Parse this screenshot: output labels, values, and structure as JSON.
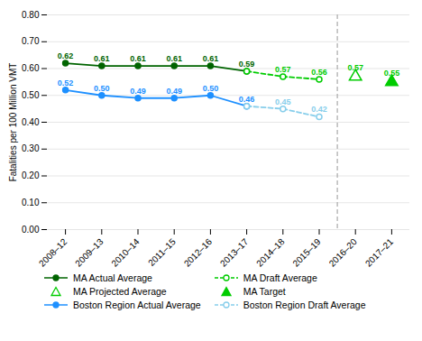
{
  "chart_data": {
    "type": "line",
    "categories": [
      "2008–12",
      "2009–13",
      "2010–14",
      "2011–15",
      "2012–16",
      "2013–17",
      "2014–18",
      "2015–19",
      "2016–20",
      "2017–21"
    ],
    "series": [
      {
        "name": "MA Actual Average",
        "type": "line",
        "color": "#006400",
        "marker": "circle",
        "line_style": "solid",
        "values": [
          0.62,
          0.61,
          0.61,
          0.61,
          0.61,
          0.59,
          null,
          null,
          null,
          null
        ],
        "value_labels": [
          "0.62",
          "0.61",
          "0.61",
          "0.61",
          "0.61",
          "0.59",
          null,
          null,
          null,
          null
        ]
      },
      {
        "name": "MA Draft Average",
        "type": "line",
        "color": "#00cc00",
        "marker": "open_circle",
        "line_style": "dashed",
        "values": [
          null,
          null,
          null,
          null,
          null,
          0.59,
          0.57,
          0.56,
          null,
          null
        ],
        "value_labels": [
          null,
          null,
          null,
          null,
          null,
          null,
          "0.57",
          "0.56",
          null,
          null
        ]
      },
      {
        "name": "MA Projected Average",
        "type": "scatter",
        "color": "#00cc00",
        "marker": "open_triangle",
        "values": [
          null,
          null,
          null,
          null,
          null,
          null,
          null,
          null,
          0.57,
          null
        ],
        "value_labels": [
          null,
          null,
          null,
          null,
          null,
          null,
          null,
          null,
          "0.57",
          null
        ]
      },
      {
        "name": "MA Target",
        "type": "scatter",
        "color": "#00cc00",
        "marker": "triangle",
        "values": [
          null,
          null,
          null,
          null,
          null,
          null,
          null,
          null,
          null,
          0.55
        ],
        "value_labels": [
          null,
          null,
          null,
          null,
          null,
          null,
          null,
          null,
          null,
          "0.55"
        ]
      },
      {
        "name": "Boston Region Actual Average",
        "type": "line",
        "color": "#1e90ff",
        "marker": "circle",
        "line_style": "solid",
        "values": [
          0.52,
          0.5,
          0.49,
          0.49,
          0.5,
          0.46,
          null,
          null,
          null,
          null
        ],
        "value_labels": [
          "0.52",
          "0.50",
          "0.49",
          "0.49",
          "0.50",
          "0.46",
          null,
          null,
          null,
          null
        ]
      },
      {
        "name": "Boston Region Draft Average",
        "type": "line",
        "color": "#87ceeb",
        "marker": "open_circle",
        "line_style": "dashed",
        "values": [
          null,
          null,
          null,
          null,
          null,
          0.46,
          0.45,
          0.42,
          null,
          null
        ],
        "value_labels": [
          null,
          null,
          null,
          null,
          null,
          null,
          "0.45",
          "0.42",
          null,
          null
        ]
      }
    ],
    "ylabel": "Fatalities per 100 Million VMT",
    "ylim": [
      0.0,
      0.8
    ],
    "yticks": [
      {
        "value": 0.0,
        "label": "0.00"
      },
      {
        "value": 0.1,
        "label": "0.10"
      },
      {
        "value": 0.2,
        "label": "0.20"
      },
      {
        "value": 0.3,
        "label": "0.30"
      },
      {
        "value": 0.4,
        "label": "0.40"
      },
      {
        "value": 0.5,
        "label": "0.50"
      },
      {
        "value": 0.6,
        "label": "0.60"
      },
      {
        "value": 0.7,
        "label": "0.70"
      },
      {
        "value": 0.8,
        "label": "0.80"
      }
    ],
    "vline_x": 7.5,
    "grid": true,
    "data_labels": true,
    "legend": "bottom"
  }
}
